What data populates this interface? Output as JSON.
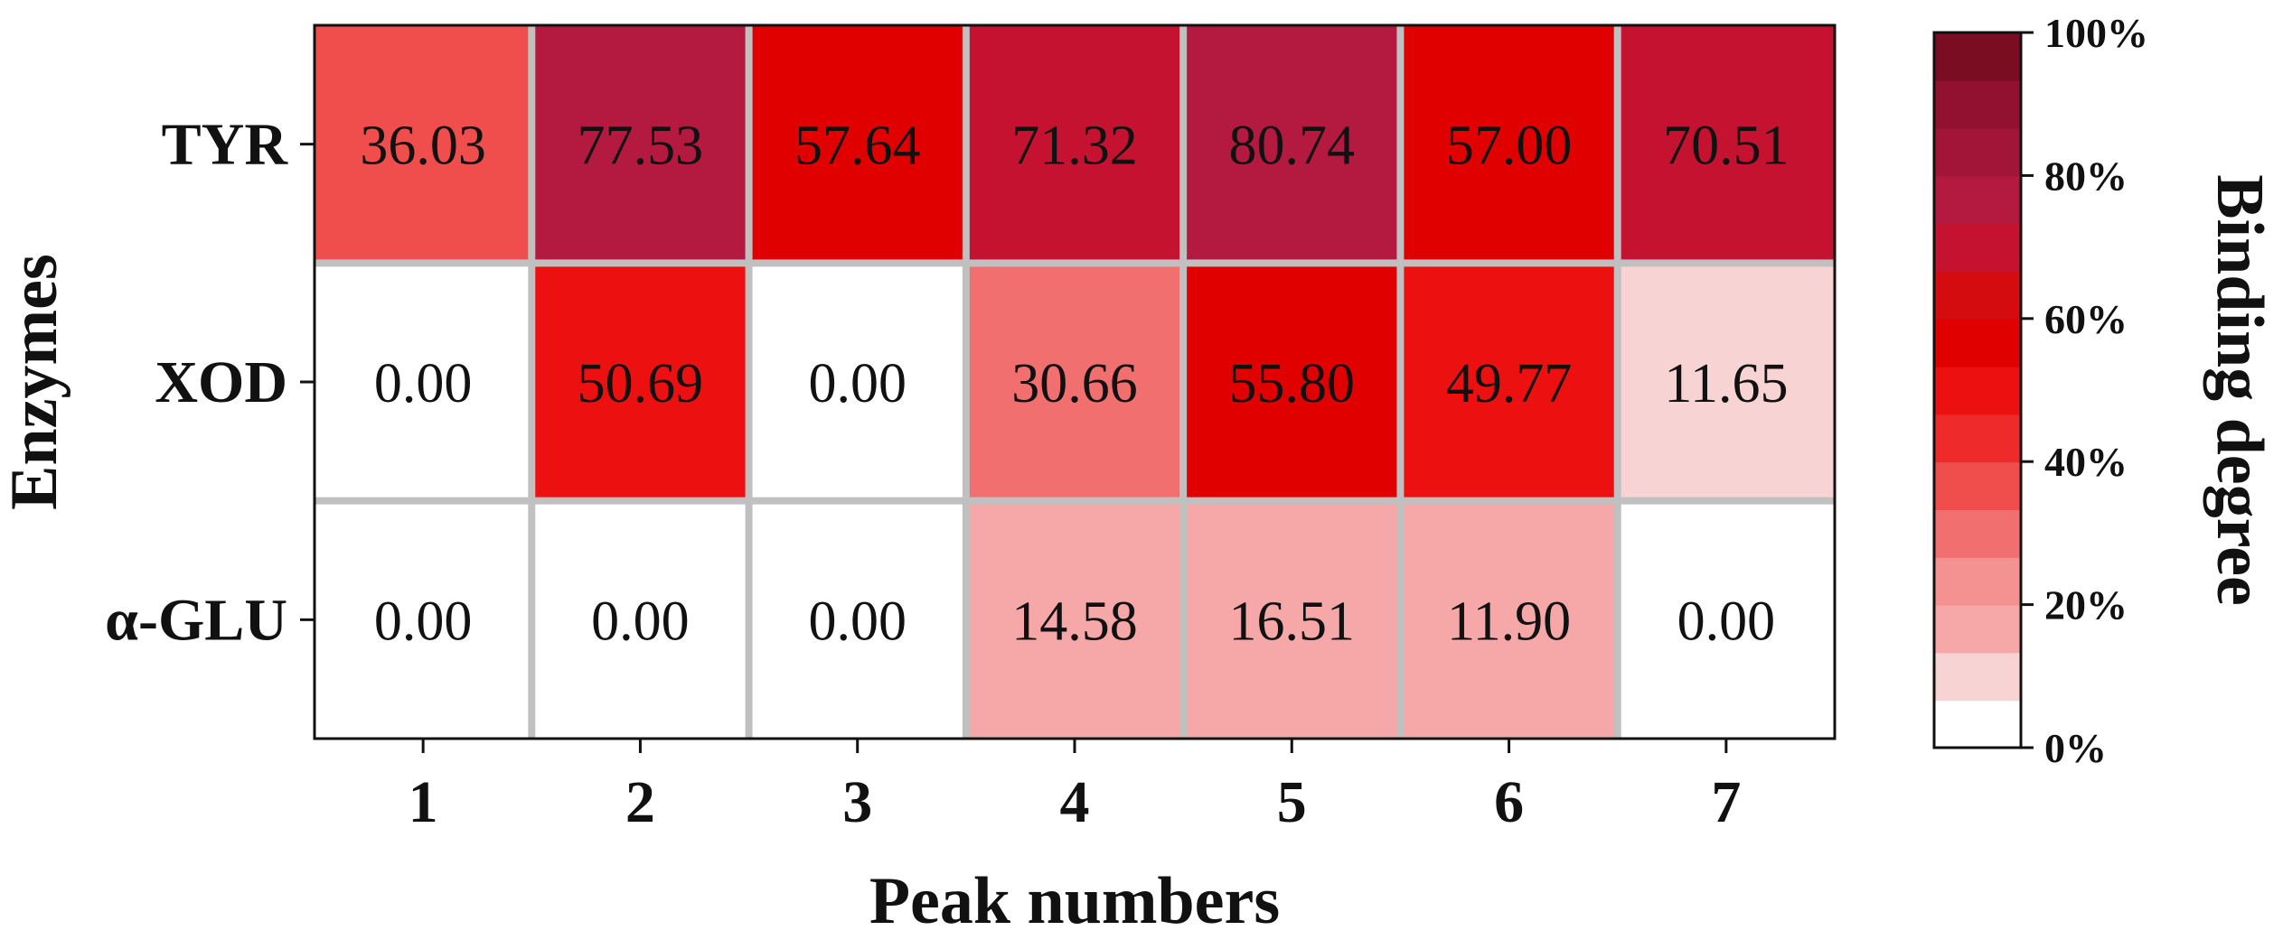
{
  "chart_data": {
    "type": "heatmap",
    "title": "",
    "xlabel": "Peak numbers",
    "ylabel": "Enzymes",
    "x_categories": [
      "1",
      "2",
      "3",
      "4",
      "5",
      "6",
      "7"
    ],
    "y_categories": [
      "TYR",
      "XOD",
      "α-GLU"
    ],
    "values": [
      [
        36.03,
        77.53,
        57.64,
        71.32,
        80.74,
        57.0,
        70.51
      ],
      [
        0.0,
        50.69,
        0.0,
        30.66,
        55.8,
        49.77,
        11.65
      ],
      [
        0.0,
        0.0,
        0.0,
        14.58,
        16.51,
        11.9,
        0.0
      ]
    ],
    "cell_labels": [
      [
        "36.03",
        "77.53",
        "57.64",
        "71.32",
        "80.74",
        "57.00",
        "70.51"
      ],
      [
        "0.00",
        "50.69",
        "0.00",
        "30.66",
        "55.80",
        "49.77",
        "11.65"
      ],
      [
        "0.00",
        "0.00",
        "0.00",
        "14.58",
        "16.51",
        "11.90",
        "0.00"
      ]
    ],
    "colorbar": {
      "label": "Binding degree",
      "range": [
        0,
        100
      ],
      "ticks": [
        0,
        20,
        40,
        60,
        80,
        100
      ],
      "tick_labels": [
        "0%",
        "20%",
        "40%",
        "60%",
        "80%",
        "100%"
      ],
      "colors": [
        "#ffffff",
        "#f8d3d3",
        "#f6a7a7",
        "#f49292",
        "#f26f6f",
        "#f04d4d",
        "#ee2a2a",
        "#ec1010",
        "#e00000",
        "#d40c10",
        "#c41230",
        "#b41a40",
        "#a31538",
        "#921030",
        "#7a0d22"
      ]
    },
    "grid": true,
    "cell_border_color": "#c0c0c0"
  }
}
